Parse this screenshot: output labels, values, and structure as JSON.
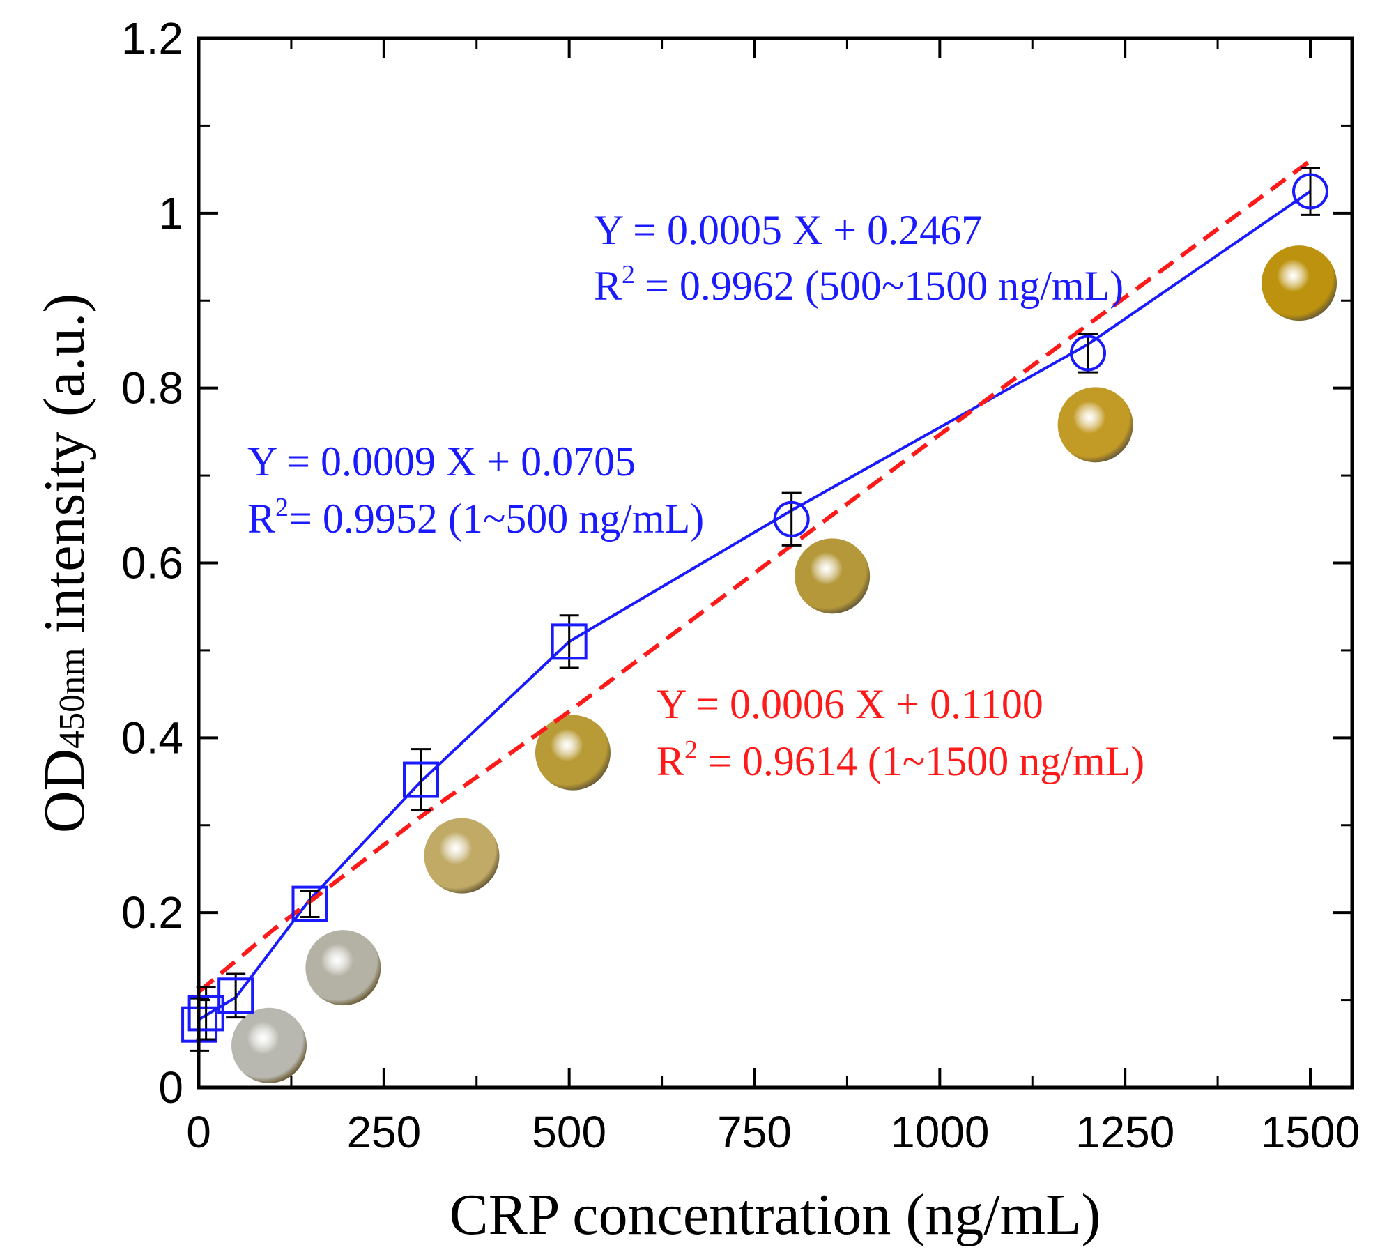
{
  "chart_data": {
    "type": "scatter",
    "xlabel": "CRP concentration (ng/mL)",
    "ylabel": {
      "prefix": "OD",
      "subscript": "450nm",
      "suffix": " intensity (a.u.)"
    },
    "xlim": [
      0,
      1500
    ],
    "ylim": [
      0,
      1.2
    ],
    "xticks": [
      0,
      250,
      500,
      750,
      1000,
      1250,
      1500
    ],
    "xtick_labels": [
      "0",
      "250",
      "500",
      "750",
      "1000",
      "1250",
      "1500"
    ],
    "yticks": [
      0,
      0.2,
      0.4,
      0.6,
      0.8,
      1.0,
      1.2
    ],
    "ytick_labels": [
      "0",
      "0.2",
      "0.4",
      "0.6",
      "0.8",
      "1",
      "1.2"
    ],
    "grid": false,
    "series": [
      {
        "name": "1~500 ng/mL",
        "marker": "square",
        "color": "#1a1aff",
        "x": [
          1,
          10,
          50,
          150,
          300,
          500
        ],
        "y": [
          0.072,
          0.085,
          0.105,
          0.21,
          0.352,
          0.51
        ],
        "yerr": [
          0.03,
          0.03,
          0.025,
          0.015,
          0.035,
          0.03
        ]
      },
      {
        "name": "500~1500 ng/mL",
        "marker": "circle",
        "color": "#1a1aff",
        "x": [
          800,
          1200,
          1500
        ],
        "y": [
          0.65,
          0.84,
          1.025
        ],
        "yerr": [
          0.03,
          0.022,
          0.027
        ]
      }
    ],
    "fits": [
      {
        "name": "fit 1~500",
        "style": "solid",
        "color": "#1a1aff",
        "x": [
          1,
          50,
          150,
          300,
          500
        ],
        "y": [
          0.078,
          0.103,
          0.215,
          0.35,
          0.51
        ]
      },
      {
        "name": "fit 500~1500",
        "style": "solid",
        "color": "#1a1aff",
        "x": [
          500,
          800,
          1200,
          1500
        ],
        "y": [
          0.51,
          0.66,
          0.85,
          1.025
        ]
      },
      {
        "name": "fit 1~1500",
        "style": "dashed",
        "color": "#ff1a1a",
        "x": [
          1,
          100,
          300,
          500,
          800,
          1100,
          1500
        ],
        "y": [
          0.11,
          0.18,
          0.31,
          0.43,
          0.62,
          0.81,
          1.06
        ]
      }
    ],
    "photos": [
      {
        "x": 95,
        "y": 0.048,
        "color": "#b8b8b0"
      },
      {
        "x": 195,
        "y": 0.137,
        "color": "#b4b2a4"
      },
      {
        "x": 355,
        "y": 0.265,
        "color": "#c0aa66"
      },
      {
        "x": 505,
        "y": 0.383,
        "color": "#b89a36"
      },
      {
        "x": 855,
        "y": 0.585,
        "color": "#b4983a"
      },
      {
        "x": 1210,
        "y": 0.758,
        "color": "#c29a26"
      },
      {
        "x": 1485,
        "y": 0.92,
        "color": "#bc920e"
      }
    ],
    "annotations": [
      {
        "id": "fit-500-1500",
        "color": "#1a1aff",
        "line1": "Y = 0.0005 X + 0.2467",
        "line2_prefix": "R",
        "line2_sup": "2",
        "line2_suffix": " = 0.9962 (500~1500 ng/mL)"
      },
      {
        "id": "fit-1-500",
        "color": "#1a1aff",
        "line1": "Y = 0.0009 X + 0.0705",
        "line2_prefix": "R",
        "line2_sup": "2",
        "line2_suffix": "= 0.9952 (1~500 ng/mL)"
      },
      {
        "id": "fit-1-1500",
        "color": "#ff1a1a",
        "line1": "Y = 0.0006 X + 0.1100",
        "line2_prefix": "R",
        "line2_sup": "2",
        "line2_suffix": " = 0.9614 (1~1500 ng/mL)"
      }
    ]
  }
}
